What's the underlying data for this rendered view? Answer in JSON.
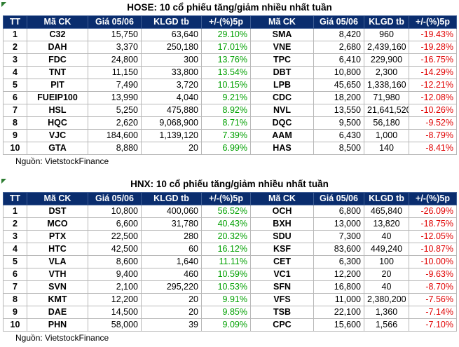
{
  "hose": {
    "title": "HOSE: 10 cổ phiếu tăng/giảm nhiều nhất tuần",
    "headers": [
      "TT",
      "Mã CK",
      "Giá 05/06",
      "KLGD tb",
      "+/-(%)5p",
      "Mã CK",
      "Giá 05/06",
      "KLGD tb",
      "+/-(%)5p"
    ],
    "rows": [
      {
        "tt": "1",
        "gain_code": "C32",
        "gain_price": "15,750",
        "gain_vol": "63,640",
        "gain_pct": "29.10%",
        "loss_code": "SMA",
        "loss_price": "8,420",
        "loss_vol": "960",
        "loss_pct": "-19.43%"
      },
      {
        "tt": "2",
        "gain_code": "DAH",
        "gain_price": "3,370",
        "gain_vol": "250,180",
        "gain_pct": "17.01%",
        "loss_code": "VNE",
        "loss_price": "2,680",
        "loss_vol": "2,439,160",
        "loss_pct": "-19.28%"
      },
      {
        "tt": "3",
        "gain_code": "FDC",
        "gain_price": "24,800",
        "gain_vol": "300",
        "gain_pct": "13.76%",
        "loss_code": "TPC",
        "loss_price": "6,410",
        "loss_vol": "229,900",
        "loss_pct": "-16.75%"
      },
      {
        "tt": "4",
        "gain_code": "TNT",
        "gain_price": "11,150",
        "gain_vol": "33,800",
        "gain_pct": "13.54%",
        "loss_code": "DBT",
        "loss_price": "10,800",
        "loss_vol": "2,300",
        "loss_pct": "-14.29%"
      },
      {
        "tt": "5",
        "gain_code": "PIT",
        "gain_price": "7,490",
        "gain_vol": "3,720",
        "gain_pct": "10.15%",
        "loss_code": "LPB",
        "loss_price": "45,650",
        "loss_vol": "1,338,160",
        "loss_pct": "-12.21%"
      },
      {
        "tt": "6",
        "gain_code": "FUEIP100",
        "gain_price": "13,990",
        "gain_vol": "4,040",
        "gain_pct": "9.21%",
        "loss_code": "CDC",
        "loss_price": "18,200",
        "loss_vol": "71,980",
        "loss_pct": "-12.08%"
      },
      {
        "tt": "7",
        "gain_code": "HSL",
        "gain_price": "5,250",
        "gain_vol": "475,880",
        "gain_pct": "8.92%",
        "loss_code": "NVL",
        "loss_price": "13,550",
        "loss_vol": "21,641,520",
        "loss_pct": "-10.26%"
      },
      {
        "tt": "8",
        "gain_code": "HQC",
        "gain_price": "2,620",
        "gain_vol": "9,068,900",
        "gain_pct": "8.71%",
        "loss_code": "DQC",
        "loss_price": "9,500",
        "loss_vol": "56,180",
        "loss_pct": "-9.52%"
      },
      {
        "tt": "9",
        "gain_code": "VJC",
        "gain_price": "184,600",
        "gain_vol": "1,139,120",
        "gain_pct": "7.39%",
        "loss_code": "AAM",
        "loss_price": "6,430",
        "loss_vol": "1,000",
        "loss_pct": "-8.79%"
      },
      {
        "tt": "10",
        "gain_code": "GTA",
        "gain_price": "8,880",
        "gain_vol": "20",
        "gain_pct": "6.99%",
        "loss_code": "HAS",
        "loss_price": "8,500",
        "loss_vol": "140",
        "loss_pct": "-8.41%"
      }
    ],
    "source": "Nguồn: VietstockFinance"
  },
  "hnx": {
    "title": "HNX: 10 cổ phiếu tăng/giảm nhiều nhất tuần",
    "headers": [
      "TT",
      "Mã CK",
      "Giá 05/06",
      "KLGD tb",
      "+/-(%)5p",
      "Mã CK",
      "Giá 05/06",
      "KLGD tb",
      "+/-(%)5p"
    ],
    "rows": [
      {
        "tt": "1",
        "gain_code": "DST",
        "gain_price": "10,800",
        "gain_vol": "400,060",
        "gain_pct": "56.52%",
        "loss_code": "OCH",
        "loss_price": "6,800",
        "loss_vol": "465,840",
        "loss_pct": "-26.09%"
      },
      {
        "tt": "2",
        "gain_code": "MCO",
        "gain_price": "6,600",
        "gain_vol": "31,780",
        "gain_pct": "40.43%",
        "loss_code": "BXH",
        "loss_price": "13,000",
        "loss_vol": "13,820",
        "loss_pct": "-18.75%"
      },
      {
        "tt": "3",
        "gain_code": "PTX",
        "gain_price": "22,500",
        "gain_vol": "280",
        "gain_pct": "20.32%",
        "loss_code": "SDU",
        "loss_price": "7,300",
        "loss_vol": "40",
        "loss_pct": "-12.05%"
      },
      {
        "tt": "4",
        "gain_code": "HTC",
        "gain_price": "42,500",
        "gain_vol": "60",
        "gain_pct": "16.12%",
        "loss_code": "KSF",
        "loss_price": "83,600",
        "loss_vol": "449,240",
        "loss_pct": "-10.87%"
      },
      {
        "tt": "5",
        "gain_code": "VLA",
        "gain_price": "8,600",
        "gain_vol": "1,640",
        "gain_pct": "11.11%",
        "loss_code": "CET",
        "loss_price": "6,300",
        "loss_vol": "100",
        "loss_pct": "-10.00%"
      },
      {
        "tt": "6",
        "gain_code": "VTH",
        "gain_price": "9,400",
        "gain_vol": "460",
        "gain_pct": "10.59%",
        "loss_code": "VC1",
        "loss_price": "12,200",
        "loss_vol": "20",
        "loss_pct": "-9.63%"
      },
      {
        "tt": "7",
        "gain_code": "SVN",
        "gain_price": "2,100",
        "gain_vol": "295,220",
        "gain_pct": "10.53%",
        "loss_code": "SFN",
        "loss_price": "16,800",
        "loss_vol": "40",
        "loss_pct": "-8.70%"
      },
      {
        "tt": "8",
        "gain_code": "KMT",
        "gain_price": "12,200",
        "gain_vol": "20",
        "gain_pct": "9.91%",
        "loss_code": "VFS",
        "loss_price": "11,000",
        "loss_vol": "2,380,200",
        "loss_pct": "-7.56%"
      },
      {
        "tt": "9",
        "gain_code": "DAE",
        "gain_price": "14,500",
        "gain_vol": "20",
        "gain_pct": "9.85%",
        "loss_code": "TSB",
        "loss_price": "22,100",
        "loss_vol": "1,360",
        "loss_pct": "-7.14%"
      },
      {
        "tt": "10",
        "gain_code": "PHN",
        "gain_price": "58,000",
        "gain_vol": "39",
        "gain_pct": "9.09%",
        "loss_code": "CPC",
        "loss_price": "15,600",
        "loss_vol": "1,566",
        "loss_pct": "-7.10%"
      }
    ],
    "source": "Nguồn: VietstockFinance"
  }
}
